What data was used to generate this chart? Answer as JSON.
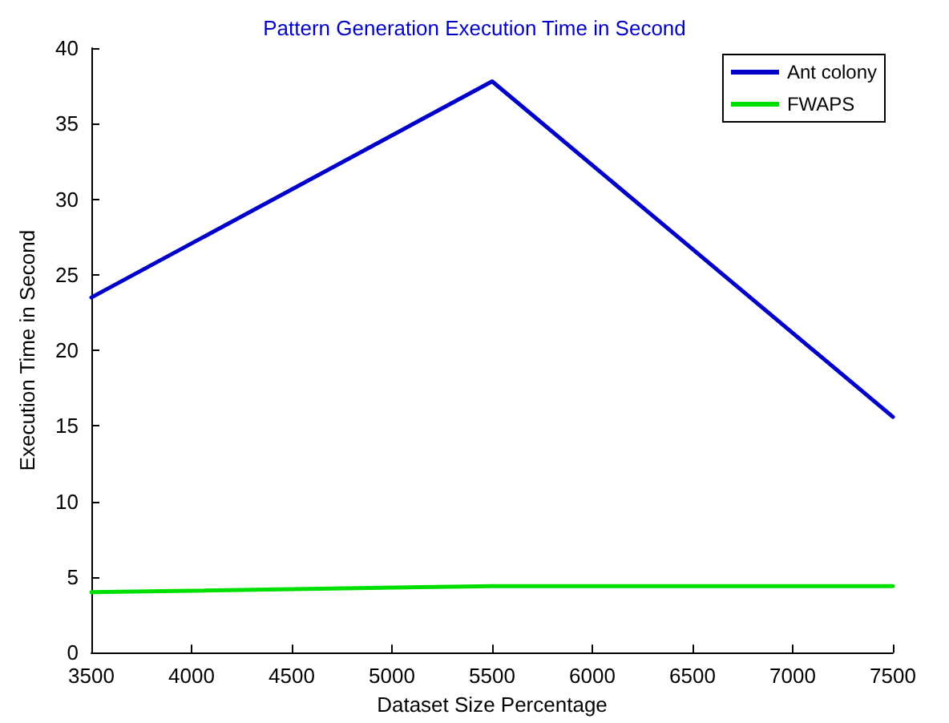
{
  "chart_data": {
    "type": "line",
    "title": "Pattern Generation Execution Time in Second",
    "xlabel": "Dataset Size Percentage",
    "ylabel": "Execution Time in Second",
    "x": [
      3500,
      5500,
      7500
    ],
    "series": [
      {
        "name": "Ant colony",
        "color": "#0000c8",
        "values": [
          23.5,
          37.8,
          15.6
        ]
      },
      {
        "name": "FWAPS",
        "color": "#00e000",
        "values": [
          4.0,
          4.4,
          4.4
        ]
      }
    ],
    "xlim": [
      3500,
      7500
    ],
    "xticks": [
      3500,
      4000,
      4500,
      5000,
      5500,
      6000,
      6500,
      7000,
      7500
    ],
    "ylim": [
      0,
      40
    ],
    "yticks": [
      0,
      5,
      10,
      15,
      20,
      25,
      30,
      35,
      40
    ],
    "grid": false,
    "legend": "top right",
    "marker": "none",
    "line_style": "solid"
  }
}
